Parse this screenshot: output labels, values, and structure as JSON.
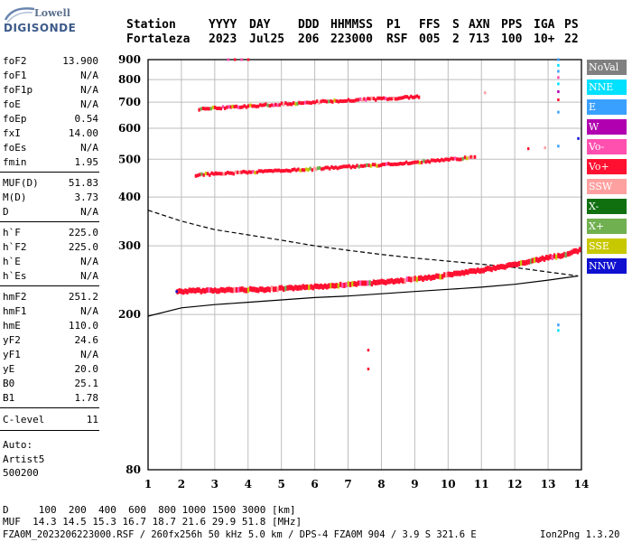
{
  "logo": {
    "line1": "Lowell",
    "line2": "DIGISONDE"
  },
  "header": {
    "labels": [
      "Station",
      "YYYY",
      "DAY",
      "DDD",
      "HHMMSS",
      "P1",
      "FFS",
      "S",
      "AXN",
      "PPS",
      "IGA",
      "PS"
    ],
    "values": [
      "Fortaleza",
      "2023",
      "Jul25",
      "206",
      "223000",
      "RSF",
      "005",
      "2",
      "713",
      "100",
      "10+",
      "22"
    ]
  },
  "params": [
    {
      "k": "foF2",
      "v": "13.900"
    },
    {
      "k": "foF1",
      "v": "N/A"
    },
    {
      "k": "foF1p",
      "v": "N/A"
    },
    {
      "k": "foE",
      "v": "N/A"
    },
    {
      "k": "foEp",
      "v": "0.54"
    },
    {
      "k": "fxI",
      "v": "14.00"
    },
    {
      "k": "foEs",
      "v": "N/A"
    },
    {
      "k": "fmin",
      "v": "1.95"
    },
    {
      "k": "MUF(D)",
      "v": "51.83"
    },
    {
      "k": "M(D)",
      "v": "3.73"
    },
    {
      "k": "D",
      "v": "N/A"
    },
    {
      "k": "h`F",
      "v": "225.0"
    },
    {
      "k": "h`F2",
      "v": "225.0"
    },
    {
      "k": "h`E",
      "v": "N/A"
    },
    {
      "k": "h`Es",
      "v": "N/A"
    },
    {
      "k": "hmF2",
      "v": "251.2"
    },
    {
      "k": "hmF1",
      "v": "N/A"
    },
    {
      "k": "hmE",
      "v": "110.0"
    },
    {
      "k": "yF2",
      "v": "24.6"
    },
    {
      "k": "yF1",
      "v": "N/A"
    },
    {
      "k": "yE",
      "v": "20.0"
    },
    {
      "k": "B0",
      "v": "25.1"
    },
    {
      "k": "B1",
      "v": "1.78"
    },
    {
      "k": "C-level",
      "v": "11"
    }
  ],
  "auto": {
    "l1": "Auto:",
    "l2": "Artist5",
    "l3": "500200"
  },
  "legend": [
    {
      "label": "NoVal",
      "color": "#808080"
    },
    {
      "label": "NNE",
      "color": "#00e0ff"
    },
    {
      "label": "E",
      "color": "#3aa0ff"
    },
    {
      "label": "W",
      "color": "#b000b0"
    },
    {
      "label": "Vo-",
      "color": "#ff50b0"
    },
    {
      "label": "Vo+",
      "color": "#ff1030"
    },
    {
      "label": "SSW",
      "color": "#ffa0a0"
    },
    {
      "label": "X-",
      "color": "#107010"
    },
    {
      "label": "X+",
      "color": "#70b050"
    },
    {
      "label": "SSE",
      "color": "#c8c800"
    },
    {
      "label": "NNW",
      "color": "#1010d0"
    }
  ],
  "footer": {
    "d_row": "D     100  200  400  600  800 1000 1500 3000 [km]",
    "muf_row": "MUF  14.3 14.5 15.3 16.7 18.7 21.6 29.9 51.8 [MHz]",
    "file_row": "FZA0M_2023206223000.RSF / 260fx256h 50 kHz 5.0 km / DPS-4 FZA0M 904 / 3.9 S 321.6 E",
    "version": "Ion2Png 1.3.20"
  },
  "chart_data": {
    "type": "scatter",
    "xlim": [
      1,
      14
    ],
    "ylim": [
      80,
      900
    ],
    "y_scale": "log",
    "x_ticks": [
      1,
      2,
      3,
      4,
      5,
      6,
      7,
      8,
      9,
      10,
      11,
      12,
      13,
      14
    ],
    "y_ticks": [
      80,
      200,
      300,
      400,
      500,
      600,
      700,
      800,
      900
    ],
    "grid": true,
    "legend_placement": "right",
    "series": [
      {
        "color": "#ff1030",
        "trace": "1st hop",
        "points": [
          [
            1.85,
            229
          ],
          [
            2.5,
            230
          ],
          [
            3.5,
            231
          ],
          [
            4.5,
            232
          ],
          [
            5.5,
            234
          ],
          [
            6.5,
            237
          ],
          [
            7.5,
            240
          ],
          [
            8.5,
            244
          ],
          [
            9.5,
            249
          ],
          [
            10.5,
            256
          ],
          [
            11.5,
            264
          ],
          [
            12.5,
            274
          ],
          [
            13.5,
            285
          ],
          [
            13.95,
            293
          ]
        ]
      },
      {
        "color": "#ff1030",
        "trace": "2nd hop",
        "points": [
          [
            2.4,
            455
          ],
          [
            3,
            459
          ],
          [
            4,
            463
          ],
          [
            5,
            467
          ],
          [
            6,
            472
          ],
          [
            7,
            478
          ],
          [
            8,
            484
          ],
          [
            9,
            491
          ],
          [
            10,
            499
          ],
          [
            10.8,
            506
          ]
        ]
      },
      {
        "color": "#ff1030",
        "trace": "3rd hop",
        "points": [
          [
            2.5,
            672
          ],
          [
            3.5,
            680
          ],
          [
            4.5,
            688
          ],
          [
            5.5,
            696
          ],
          [
            6.5,
            704
          ],
          [
            7.5,
            711
          ],
          [
            8.5,
            718
          ],
          [
            9.1,
            723
          ]
        ]
      }
    ],
    "profile_solid": [
      [
        1,
        198
      ],
      [
        2,
        208
      ],
      [
        3,
        212
      ],
      [
        4,
        215
      ],
      [
        5,
        218
      ],
      [
        6,
        221
      ],
      [
        7,
        223
      ],
      [
        8,
        226
      ],
      [
        9,
        229
      ],
      [
        10,
        232
      ],
      [
        11,
        235
      ],
      [
        12,
        239
      ],
      [
        13,
        245
      ],
      [
        13.9,
        251
      ]
    ],
    "profile_dashed": [
      [
        1,
        370
      ],
      [
        2,
        347
      ],
      [
        3,
        330
      ],
      [
        4,
        320
      ],
      [
        5,
        310
      ],
      [
        6,
        300
      ],
      [
        7,
        292
      ],
      [
        8,
        285
      ],
      [
        9,
        279
      ],
      [
        10,
        274
      ],
      [
        11,
        269
      ],
      [
        12,
        264
      ],
      [
        13,
        257
      ],
      [
        13.9,
        251
      ]
    ]
  }
}
